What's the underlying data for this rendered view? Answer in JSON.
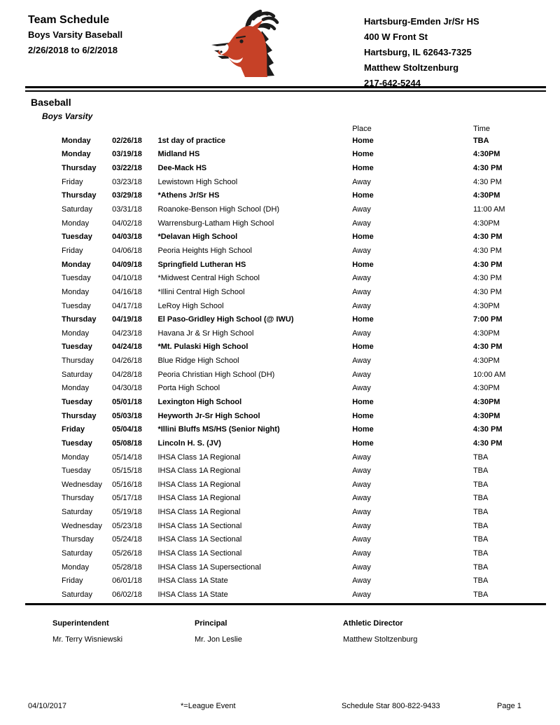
{
  "header": {
    "title": "Team Schedule",
    "subtitle": "Boys Varsity Baseball",
    "date_range": "2/26/2018 to 6/2/2018",
    "school": {
      "name": "Hartsburg-Emden Jr/Sr HS",
      "address_line1": "400 W Front St",
      "address_line2": "Hartsburg, IL 62643-7325",
      "contact_name": "Matthew Stoltzenburg",
      "phone": "217-642-5244"
    }
  },
  "section": {
    "sport": "Baseball",
    "team": "Boys Varsity"
  },
  "schedule": {
    "columns": {
      "place": "Place",
      "time": "Time"
    },
    "rows": [
      {
        "day": "Monday",
        "date": "02/26/18",
        "event": "1st day of practice",
        "place": "Home",
        "time": "TBA"
      },
      {
        "day": "Monday",
        "date": "03/19/18",
        "event": "Midland HS",
        "place": "Home",
        "time": "4:30PM"
      },
      {
        "day": "Thursday",
        "date": "03/22/18",
        "event": "Dee-Mack HS",
        "place": "Home",
        "time": "4:30 PM"
      },
      {
        "day": "Friday",
        "date": "03/23/18",
        "event": "Lewistown High School",
        "place": "Away",
        "time": "4:30 PM"
      },
      {
        "day": "Thursday",
        "date": "03/29/18",
        "event": "*Athens Jr/Sr HS",
        "place": "Home",
        "time": "4:30PM"
      },
      {
        "day": "Saturday",
        "date": "03/31/18",
        "event": "Roanoke-Benson High School (DH)",
        "place": "Away",
        "time": "11:00 AM"
      },
      {
        "day": "Monday",
        "date": "04/02/18",
        "event": "Warrensburg-Latham High School",
        "place": "Away",
        "time": "4:30PM"
      },
      {
        "day": "Tuesday",
        "date": "04/03/18",
        "event": "*Delavan High School",
        "place": "Home",
        "time": "4:30 PM"
      },
      {
        "day": "Friday",
        "date": "04/06/18",
        "event": "Peoria Heights High School",
        "place": "Away",
        "time": "4:30 PM"
      },
      {
        "day": "Monday",
        "date": "04/09/18",
        "event": "Springfield Lutheran HS",
        "place": "Home",
        "time": "4:30 PM"
      },
      {
        "day": "Tuesday",
        "date": "04/10/18",
        "event": "*Midwest Central High School",
        "place": "Away",
        "time": "4:30 PM"
      },
      {
        "day": "Monday",
        "date": "04/16/18",
        "event": "*Illini Central High School",
        "place": "Away",
        "time": "4:30 PM"
      },
      {
        "day": "Tuesday",
        "date": "04/17/18",
        "event": "LeRoy High School",
        "place": "Away",
        "time": "4:30PM"
      },
      {
        "day": "Thursday",
        "date": "04/19/18",
        "event": "El Paso-Gridley High School (@ IWU)",
        "place": "Home",
        "time": "7:00 PM"
      },
      {
        "day": "Monday",
        "date": "04/23/18",
        "event": "Havana Jr & Sr High School",
        "place": "Away",
        "time": "4:30PM"
      },
      {
        "day": "Tuesday",
        "date": "04/24/18",
        "event": "*Mt. Pulaski High School",
        "place": "Home",
        "time": "4:30 PM"
      },
      {
        "day": "Thursday",
        "date": "04/26/18",
        "event": "Blue Ridge High School",
        "place": "Away",
        "time": "4:30PM"
      },
      {
        "day": "Saturday",
        "date": "04/28/18",
        "event": "Peoria Christian High School (DH)",
        "place": "Away",
        "time": "10:00 AM"
      },
      {
        "day": "Monday",
        "date": "04/30/18",
        "event": "Porta High School",
        "place": "Away",
        "time": "4:30PM"
      },
      {
        "day": "Tuesday",
        "date": "05/01/18",
        "event": "Lexington High School",
        "place": "Home",
        "time": "4:30PM"
      },
      {
        "day": "Thursday",
        "date": "05/03/18",
        "event": "Heyworth Jr-Sr High School",
        "place": "Home",
        "time": "4:30PM"
      },
      {
        "day": "Friday",
        "date": "05/04/18",
        "event": "*Illini Bluffs MS/HS (Senior Night)",
        "place": "Home",
        "time": "4:30 PM"
      },
      {
        "day": "Tuesday",
        "date": "05/08/18",
        "event": "Lincoln H. S. (JV)",
        "place": "Home",
        "time": "4:30 PM"
      },
      {
        "day": "Monday",
        "date": "05/14/18",
        "event": "IHSA Class 1A Regional",
        "place": "Away",
        "time": "TBA"
      },
      {
        "day": "Tuesday",
        "date": "05/15/18",
        "event": "IHSA Class 1A Regional",
        "place": "Away",
        "time": "TBA"
      },
      {
        "day": "Wednesday",
        "date": "05/16/18",
        "event": "IHSA Class 1A Regional",
        "place": "Away",
        "time": "TBA"
      },
      {
        "day": "Thursday",
        "date": "05/17/18",
        "event": "IHSA Class 1A Regional",
        "place": "Away",
        "time": "TBA"
      },
      {
        "day": "Saturday",
        "date": "05/19/18",
        "event": "IHSA Class 1A Regional",
        "place": "Away",
        "time": "TBA"
      },
      {
        "day": "Wednesday",
        "date": "05/23/18",
        "event": "IHSA Class 1A Sectional",
        "place": "Away",
        "time": "TBA"
      },
      {
        "day": "Thursday",
        "date": "05/24/18",
        "event": "IHSA Class 1A Sectional",
        "place": "Away",
        "time": "TBA"
      },
      {
        "day": "Saturday",
        "date": "05/26/18",
        "event": "IHSA Class 1A Sectional",
        "place": "Away",
        "time": "TBA"
      },
      {
        "day": "Monday",
        "date": "05/28/18",
        "event": "IHSA Class 1A Supersectional",
        "place": "Away",
        "time": "TBA"
      },
      {
        "day": "Friday",
        "date": "06/01/18",
        "event": "IHSA Class 1A State",
        "place": "Away",
        "time": "TBA"
      },
      {
        "day": "Saturday",
        "date": "06/02/18",
        "event": "IHSA Class 1A State",
        "place": "Away",
        "time": "TBA"
      }
    ]
  },
  "staff": [
    {
      "role": "Superintendent",
      "name": "Mr. Terry Wisniewski"
    },
    {
      "role": "Principal",
      "name": "Mr. Jon Leslie"
    },
    {
      "role": "Athletic Director",
      "name": "Matthew Stoltzenburg"
    }
  ],
  "footer": {
    "date": "04/10/2017",
    "legend": "*=League Event",
    "vendor": "Schedule Star 800-822-9433",
    "page": "Page 1"
  },
  "colors": {
    "logo_red": "#c64127",
    "logo_dark": "#1c1c1c"
  }
}
